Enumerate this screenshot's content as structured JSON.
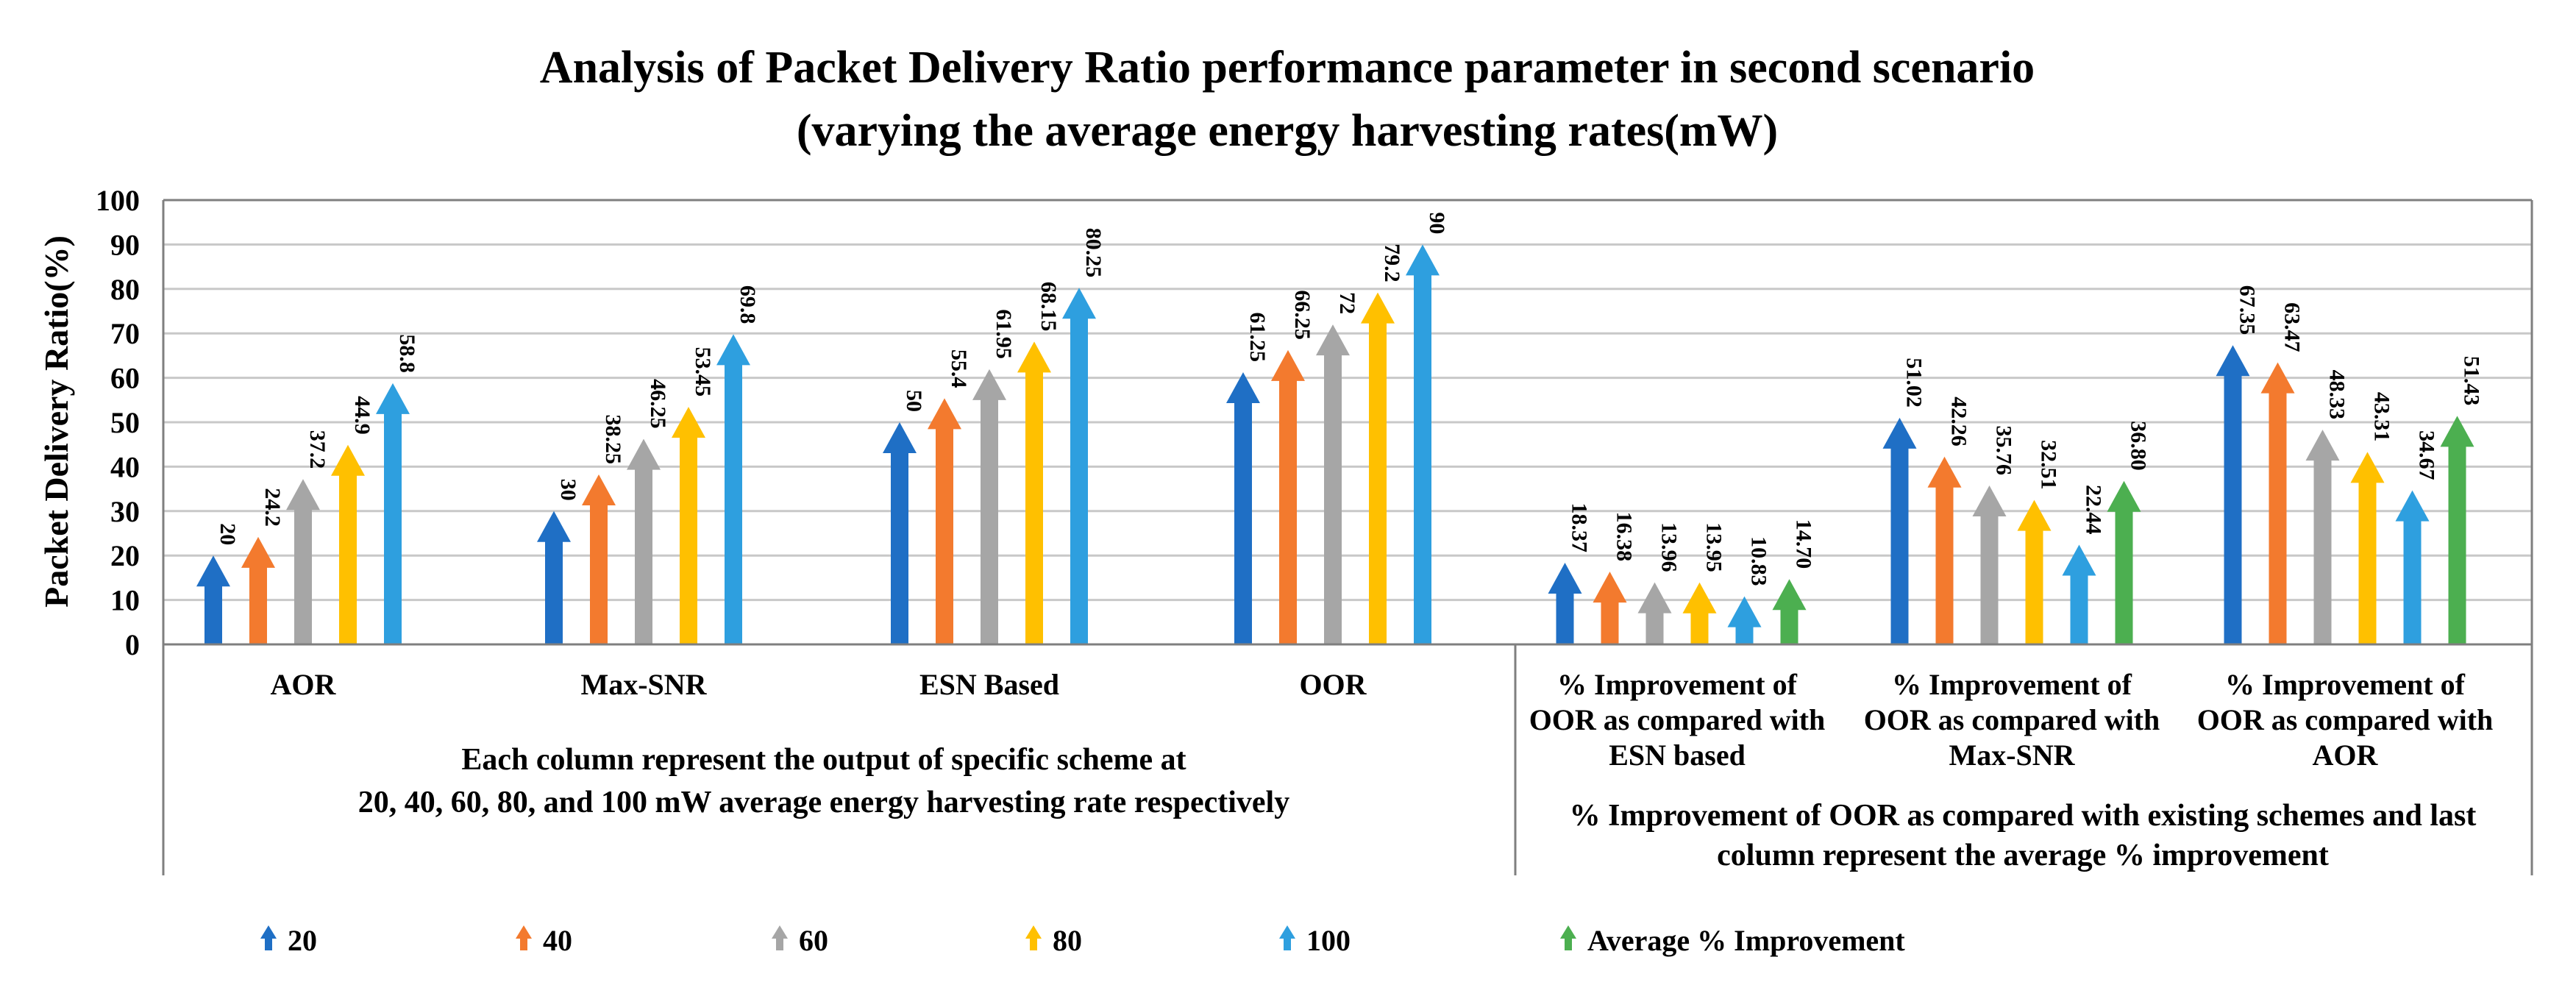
{
  "chart_data": {
    "type": "bar",
    "title_lines": [
      "Analysis of Packet Delivery Ratio performance parameter in second scenario",
      "(varying the average energy harvesting rates(mW)"
    ],
    "ylabel": "Packet Delivery Ratio(%)",
    "ylim": [
      0,
      100
    ],
    "yticks": [
      "0",
      "10",
      "20",
      "30",
      "40",
      "50",
      "60",
      "70",
      "80",
      "90",
      "100"
    ],
    "grid": true,
    "bar_shape": "arrow",
    "groups": [
      {
        "label_lines": [
          "AOR"
        ],
        "values": [
          20,
          24.2,
          37.2,
          44.9,
          58.8
        ],
        "labels": [
          "20",
          "24.2",
          "37.2",
          "44.9",
          "58.8"
        ],
        "series": [
          "20",
          "40",
          "60",
          "80",
          "100"
        ]
      },
      {
        "label_lines": [
          "Max-SNR"
        ],
        "values": [
          30,
          38.25,
          46.25,
          53.45,
          69.8
        ],
        "labels": [
          "30",
          "38.25",
          "46.25",
          "53.45",
          "69.8"
        ],
        "series": [
          "20",
          "40",
          "60",
          "80",
          "100"
        ]
      },
      {
        "label_lines": [
          "ESN Based"
        ],
        "values": [
          50,
          55.4,
          61.95,
          68.15,
          80.25
        ],
        "labels": [
          "50",
          "55.4",
          "61.95",
          "68.15",
          "80.25"
        ],
        "series": [
          "20",
          "40",
          "60",
          "80",
          "100"
        ]
      },
      {
        "label_lines": [
          "OOR"
        ],
        "values": [
          61.25,
          66.25,
          72,
          79.2,
          90
        ],
        "labels": [
          "61.25",
          "66.25",
          "72",
          "79.2",
          "90"
        ],
        "series": [
          "20",
          "40",
          "60",
          "80",
          "100"
        ]
      },
      {
        "label_lines": [
          "% Improvement of",
          "OOR as compared with",
          "ESN based"
        ],
        "values": [
          18.37,
          16.38,
          13.96,
          13.95,
          10.83,
          14.7
        ],
        "labels": [
          "18.37",
          "16.38",
          "13.96",
          "13.95",
          "10.83",
          "14.70"
        ],
        "series": [
          "20",
          "40",
          "60",
          "80",
          "100",
          "Average % Improvement"
        ]
      },
      {
        "label_lines": [
          "% Improvement of",
          "OOR as compared with",
          "Max-SNR"
        ],
        "values": [
          51.02,
          42.26,
          35.76,
          32.51,
          22.44,
          36.8
        ],
        "labels": [
          "51.02",
          "42.26",
          "35.76",
          "32.51",
          "22.44",
          "36.80"
        ],
        "series": [
          "20",
          "40",
          "60",
          "80",
          "100",
          "Average % Improvement"
        ]
      },
      {
        "label_lines": [
          "% Improvement of",
          "OOR as compared with",
          "AOR"
        ],
        "values": [
          67.35,
          63.47,
          48.33,
          43.31,
          34.67,
          51.43
        ],
        "labels": [
          "67.35",
          "63.47",
          "48.33",
          "43.31",
          "34.67",
          "51.43"
        ],
        "series": [
          "20",
          "40",
          "60",
          "80",
          "100",
          "Average % Improvement"
        ]
      }
    ],
    "section_notes": [
      [
        "Each column represent the output of specific scheme at",
        "20, 40, 60, 80, and 100 mW average energy harvesting rate respectively"
      ],
      [
        "% Improvement of OOR as compared with existing schemes and last",
        "column represent the average % improvement"
      ]
    ],
    "legend_position": "bottom",
    "legend": [
      {
        "name": "20",
        "color": "#1F6FC5"
      },
      {
        "name": "40",
        "color": "#F37A2E"
      },
      {
        "name": "60",
        "color": "#A6A6A6"
      },
      {
        "name": "80",
        "color": "#FFC000"
      },
      {
        "name": "100",
        "color": "#2E9FDF"
      },
      {
        "name": "Average % Improvement",
        "color": "#4CAF50"
      }
    ]
  }
}
